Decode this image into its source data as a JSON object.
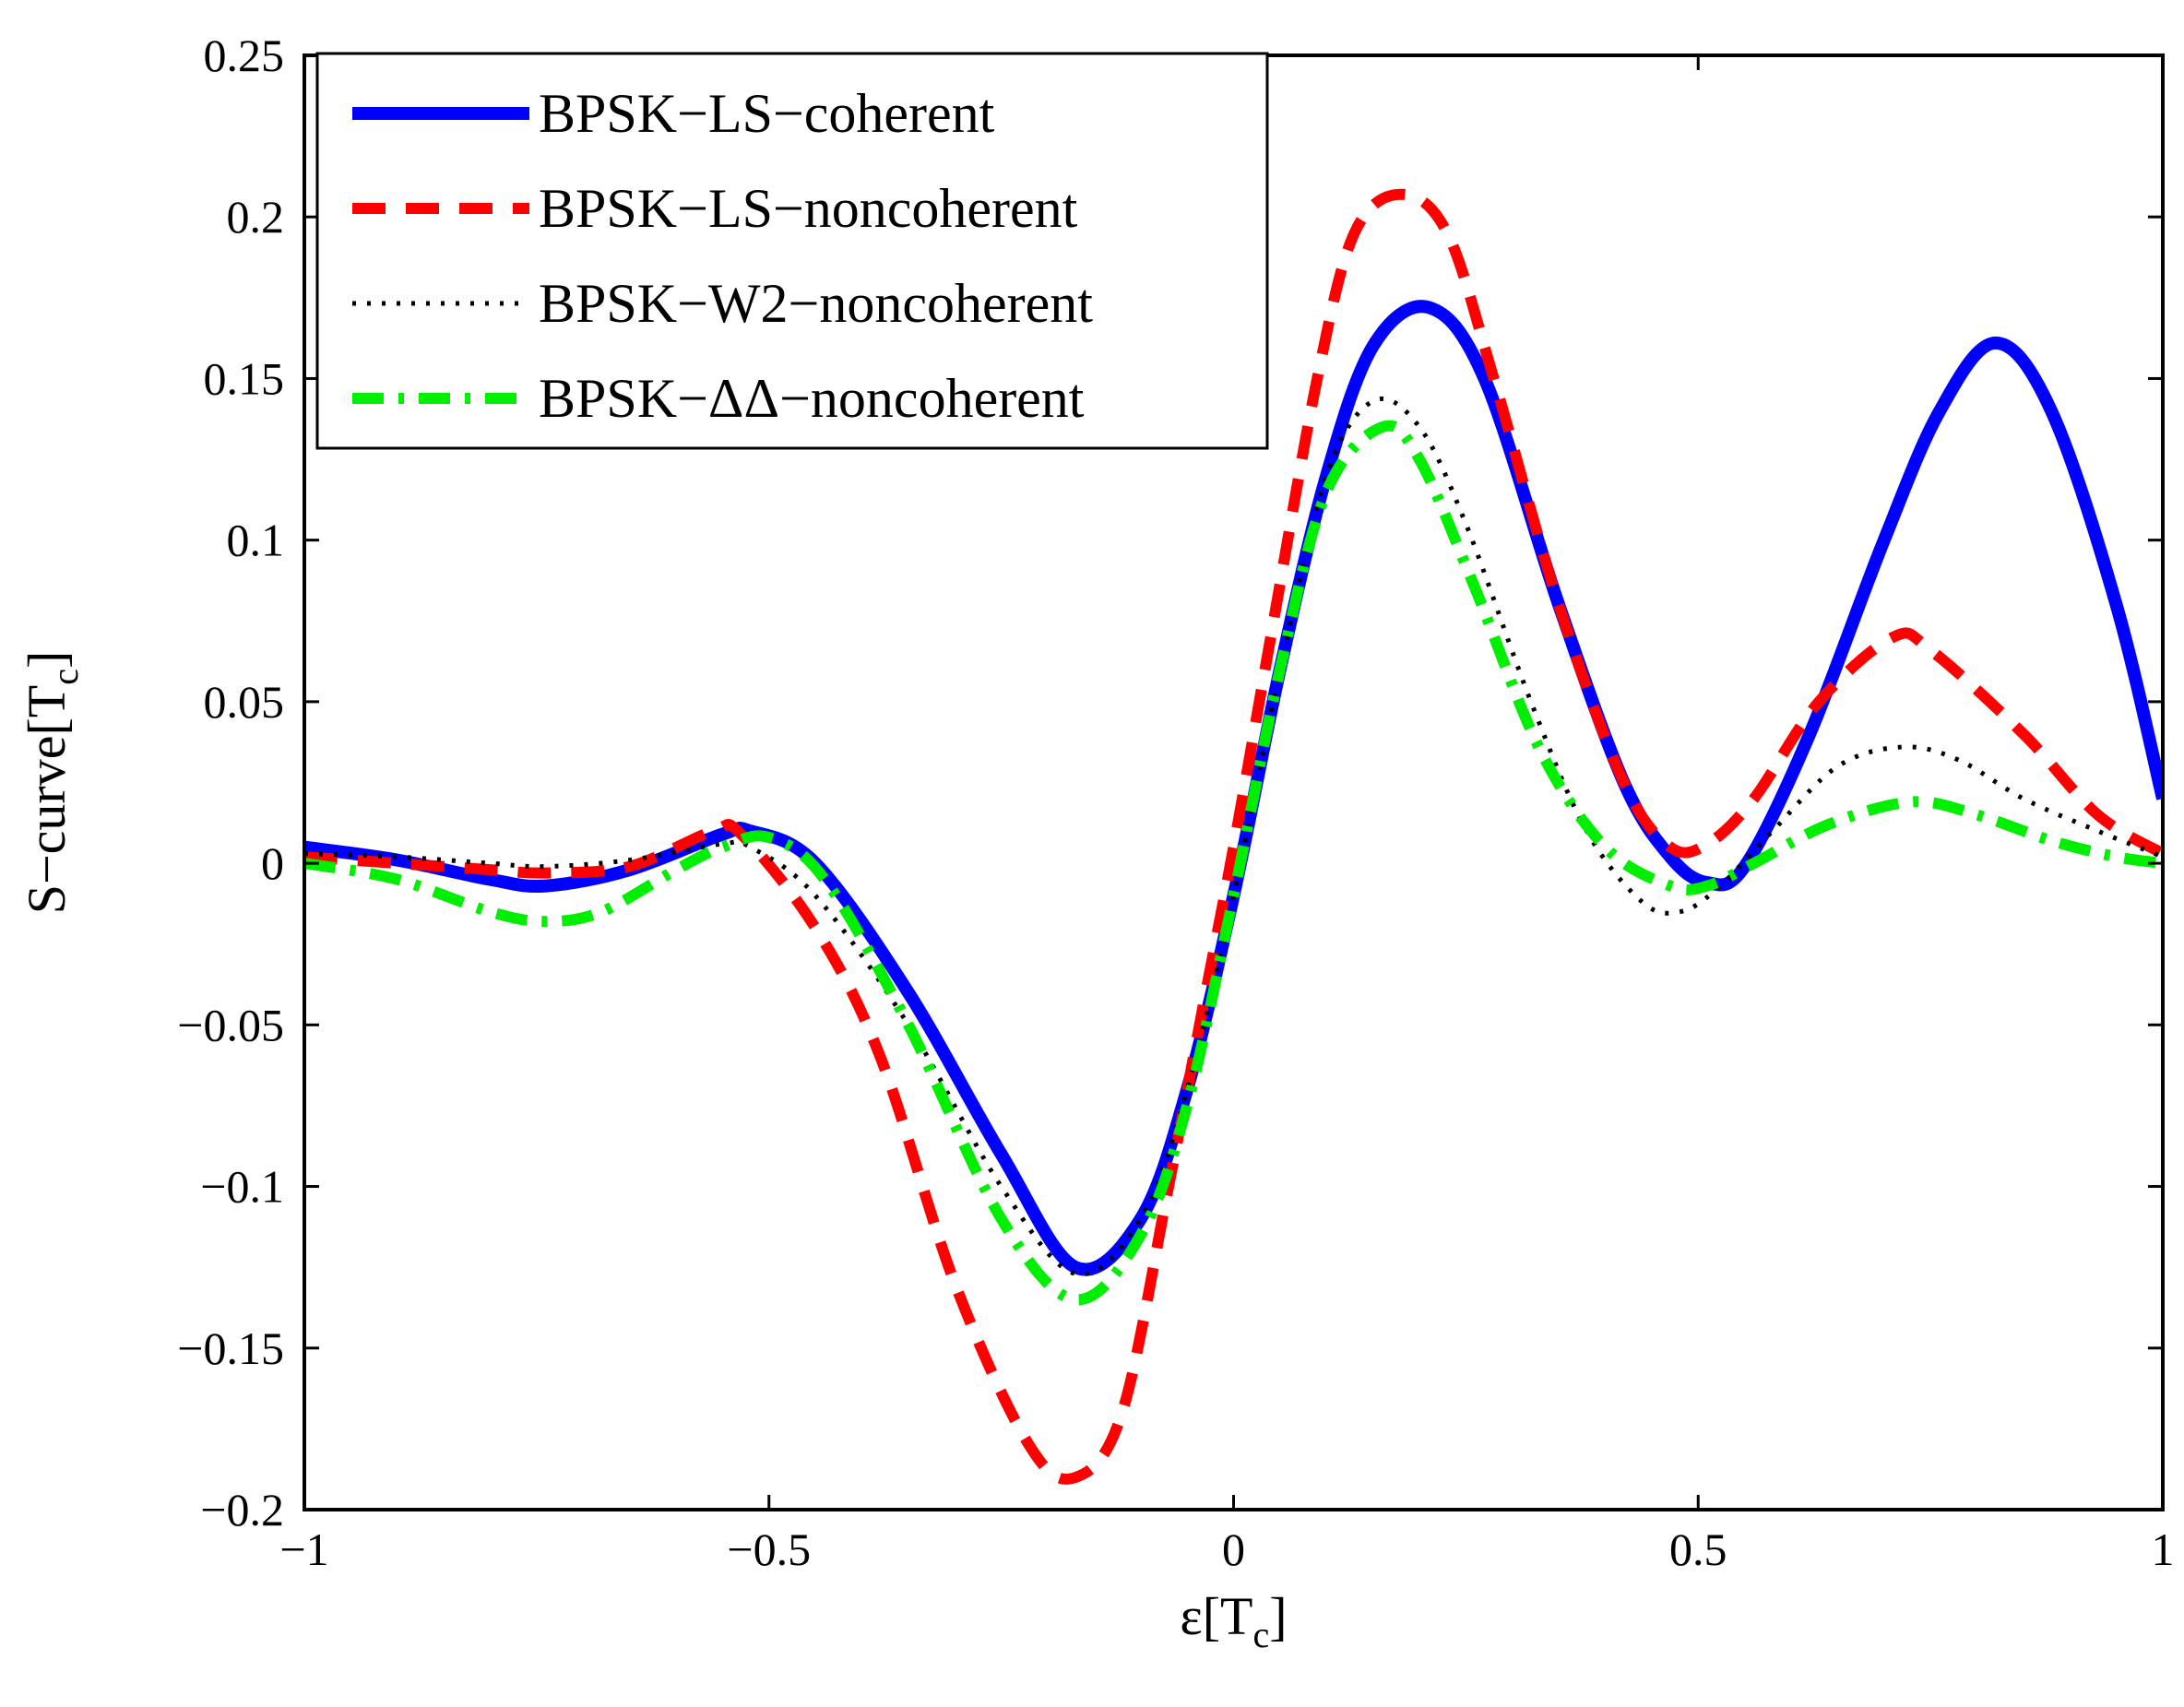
{
  "chart_data": {
    "type": "line",
    "title": "",
    "xlabel": {
      "main": "ε[T",
      "sub": "c",
      "close": "]"
    },
    "ylabel": {
      "main": "S−curve[T",
      "sub": "c",
      "close": "]"
    },
    "xlim": [
      -1,
      1
    ],
    "ylim": [
      -0.2,
      0.25
    ],
    "xticks": [
      -1,
      -0.5,
      0,
      0.5,
      1
    ],
    "xtick_labels": [
      "−1",
      "−0.5",
      "0",
      "0.5",
      "1"
    ],
    "yticks": [
      -0.2,
      -0.15,
      -0.1,
      -0.05,
      0,
      0.05,
      0.1,
      0.15,
      0.2,
      0.25
    ],
    "ytick_labels": [
      "−0.2",
      "−0.15",
      "−0.1",
      "−0.05",
      "0",
      "0.05",
      "0.1",
      "0.15",
      "0.2",
      "0.25"
    ],
    "grid": false,
    "legend_position": "top-left",
    "series": [
      {
        "name": "BPSK−LS−coherent",
        "color": "#0000ff",
        "style": "solid",
        "x": [
          -1.0,
          -0.9,
          -0.8,
          -0.74,
          -0.65,
          -0.55,
          -0.52,
          -0.45,
          -0.35,
          -0.25,
          -0.17,
          -0.1,
          -0.05,
          0.0,
          0.05,
          0.1,
          0.15,
          0.21,
          0.27,
          0.35,
          0.42,
          0.47,
          0.51,
          0.55,
          0.62,
          0.7,
          0.76,
          0.82,
          0.88,
          0.95,
          1.0
        ],
        "y": [
          0.005,
          0.001,
          -0.005,
          -0.007,
          -0.002,
          0.009,
          0.01,
          0.0,
          -0.04,
          -0.09,
          -0.125,
          -0.11,
          -0.07,
          -0.01,
          0.06,
          0.12,
          0.16,
          0.172,
          0.15,
          0.08,
          0.025,
          0.002,
          -0.006,
          -0.001,
          0.04,
          0.1,
          0.14,
          0.161,
          0.14,
          0.08,
          0.02
        ]
      },
      {
        "name": "BPSK−LS−noncoherent",
        "color": "#ff0000",
        "style": "dashed",
        "x": [
          -1.0,
          -0.9,
          -0.8,
          -0.74,
          -0.65,
          -0.56,
          -0.53,
          -0.45,
          -0.38,
          -0.3,
          -0.22,
          -0.17,
          -0.12,
          -0.07,
          -0.03,
          0.0,
          0.04,
          0.09,
          0.13,
          0.18,
          0.23,
          0.28,
          0.35,
          0.42,
          0.47,
          0.51,
          0.56,
          0.63,
          0.71,
          0.75,
          0.85,
          0.93,
          1.0
        ],
        "y": [
          0.002,
          0.0,
          -0.002,
          -0.003,
          -0.001,
          0.01,
          0.009,
          -0.02,
          -0.06,
          -0.13,
          -0.18,
          -0.19,
          -0.17,
          -0.1,
          -0.04,
          0.005,
          0.07,
          0.15,
          0.195,
          0.207,
          0.195,
          0.15,
          0.08,
          0.025,
          0.005,
          0.006,
          0.02,
          0.05,
          0.07,
          0.066,
          0.04,
          0.015,
          0.003
        ]
      },
      {
        "name": "BPSK−W2−noncoherent",
        "color": "#000000",
        "style": "dotted",
        "x": [
          -1.0,
          -0.9,
          -0.8,
          -0.74,
          -0.65,
          -0.55,
          -0.52,
          -0.45,
          -0.35,
          -0.25,
          -0.17,
          -0.1,
          -0.05,
          0.0,
          0.05,
          0.1,
          0.15,
          0.2,
          0.25,
          0.32,
          0.38,
          0.44,
          0.48,
          0.52,
          0.58,
          0.65,
          0.72,
          0.78,
          0.85,
          0.93,
          1.0
        ],
        "y": [
          0.003,
          0.002,
          0.0,
          -0.001,
          0.001,
          0.006,
          0.005,
          -0.01,
          -0.05,
          -0.1,
          -0.127,
          -0.11,
          -0.07,
          -0.01,
          0.06,
          0.12,
          0.143,
          0.135,
          0.105,
          0.05,
          0.01,
          -0.012,
          -0.015,
          -0.008,
          0.01,
          0.03,
          0.036,
          0.032,
          0.02,
          0.01,
          0.002
        ]
      },
      {
        "name": "BPSK−ΔΔ−noncoherent",
        "color": "#00ee00",
        "style": "dashdot",
        "x": [
          -1.0,
          -0.9,
          -0.8,
          -0.74,
          -0.68,
          -0.6,
          -0.55,
          -0.5,
          -0.44,
          -0.35,
          -0.25,
          -0.17,
          -0.1,
          -0.05,
          0.0,
          0.05,
          0.1,
          0.16,
          0.2,
          0.26,
          0.33,
          0.4,
          0.47,
          0.51,
          0.56,
          0.64,
          0.73,
          0.8,
          0.88,
          0.95,
          1.0
        ],
        "y": [
          0.0,
          -0.005,
          -0.015,
          -0.018,
          -0.015,
          -0.002,
          0.005,
          0.008,
          -0.005,
          -0.05,
          -0.11,
          -0.135,
          -0.115,
          -0.075,
          -0.01,
          0.06,
          0.115,
          0.135,
          0.125,
          0.085,
          0.035,
          0.005,
          -0.007,
          -0.007,
          0.0,
          0.012,
          0.019,
          0.015,
          0.007,
          0.002,
          0.0
        ]
      }
    ]
  }
}
